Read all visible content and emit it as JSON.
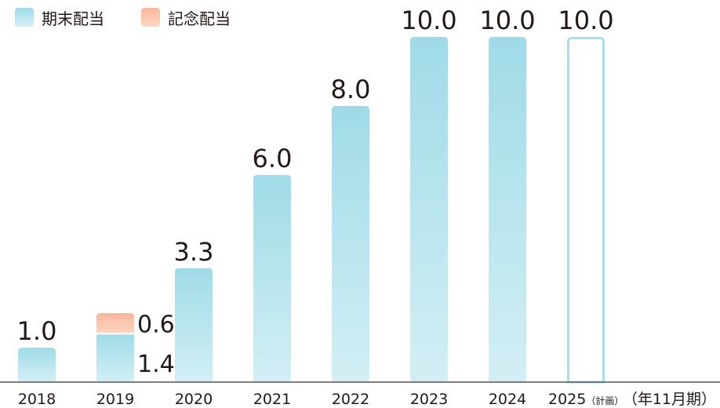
{
  "chart_data": {
    "type": "bar",
    "stacked": true,
    "categories": [
      "2018",
      "2019",
      "2020",
      "2021",
      "2022",
      "2023",
      "2024",
      "2025"
    ],
    "category_notes": [
      "",
      "",
      "",
      "",
      "",
      "",
      "",
      "（計画）"
    ],
    "axis_unit_label": "（年11月期）",
    "series": [
      {
        "name": "期末配当",
        "values": [
          1.0,
          1.4,
          3.3,
          6.0,
          8.0,
          10.0,
          10.0,
          10.0
        ]
      },
      {
        "name": "記念配当",
        "values": [
          0,
          0.6,
          0,
          0,
          0,
          0,
          0,
          0
        ]
      }
    ],
    "bar_labels": [
      "1.0",
      "",
      "3.3",
      "6.0",
      "8.0",
      "10.0",
      "10.0",
      "10.0"
    ],
    "segment_labels_2019": [
      "0.6",
      "1.4"
    ],
    "planned_index": 7,
    "ylim": [
      0,
      10.5
    ],
    "grid": false,
    "legend_position": "top-left",
    "colors": {
      "regular": "#9fdbe7",
      "regular_light": "#d3eff5",
      "commemorative": "#f8b79c",
      "commemorative_light": "#fcd5c3",
      "planned_outline": "#a8e0ea",
      "axis": "#555555",
      "text": "#231815"
    }
  }
}
